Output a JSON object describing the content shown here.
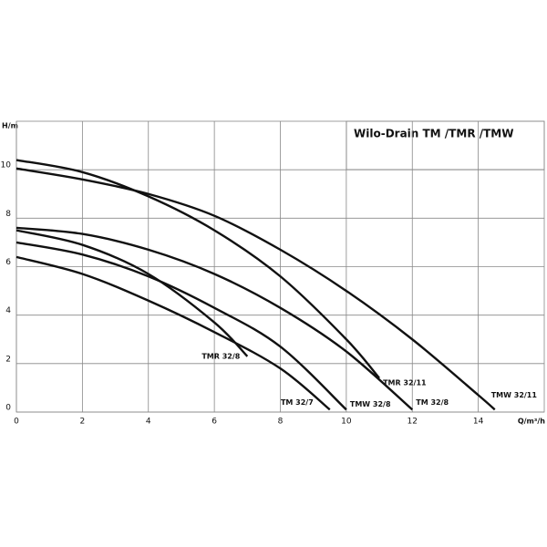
{
  "chart_data": {
    "type": "line",
    "title": "Wilo-Drain TM /TMR /TMW",
    "x_label": "Q/m³/h",
    "y_label": "H/m",
    "xlim": [
      0,
      16
    ],
    "ylim": [
      0,
      12
    ],
    "xticks": [
      0,
      2,
      4,
      6,
      8,
      10,
      12,
      14
    ],
    "yticks": [
      0,
      2,
      4,
      6,
      8,
      10
    ],
    "grid": true,
    "series": [
      {
        "name": "TMW 32/11",
        "color": "#111111",
        "x": [
          0,
          2,
          4,
          6,
          8,
          10,
          12,
          14,
          14.5
        ],
        "values": [
          10.05,
          9.6,
          9.0,
          8.1,
          6.7,
          5.0,
          3.0,
          0.7,
          0.1
        ]
      },
      {
        "name": "TMR 32/11",
        "color": "#111111",
        "x": [
          0,
          2,
          4,
          6,
          8,
          10,
          11
        ],
        "values": [
          10.4,
          9.9,
          8.9,
          7.5,
          5.6,
          3.0,
          1.4
        ]
      },
      {
        "name": "TM 32/8",
        "color": "#111111",
        "x": [
          0,
          2,
          4,
          6,
          8,
          10,
          12
        ],
        "values": [
          7.6,
          7.35,
          6.7,
          5.7,
          4.3,
          2.5,
          0.1
        ]
      },
      {
        "name": "TMW 32/8",
        "color": "#111111",
        "x": [
          0,
          2,
          4,
          6,
          8,
          10
        ],
        "values": [
          7.0,
          6.5,
          5.6,
          4.3,
          2.7,
          0.1
        ]
      },
      {
        "name": "TM 32/7",
        "color": "#111111",
        "x": [
          0,
          2,
          4,
          6,
          8,
          9.5
        ],
        "values": [
          6.4,
          5.7,
          4.6,
          3.3,
          1.8,
          0.1
        ]
      },
      {
        "name": "TMR 32/8",
        "color": "#111111",
        "x": [
          0,
          2,
          4,
          6,
          7
        ],
        "values": [
          7.5,
          6.9,
          5.7,
          3.7,
          2.3
        ]
      }
    ]
  }
}
